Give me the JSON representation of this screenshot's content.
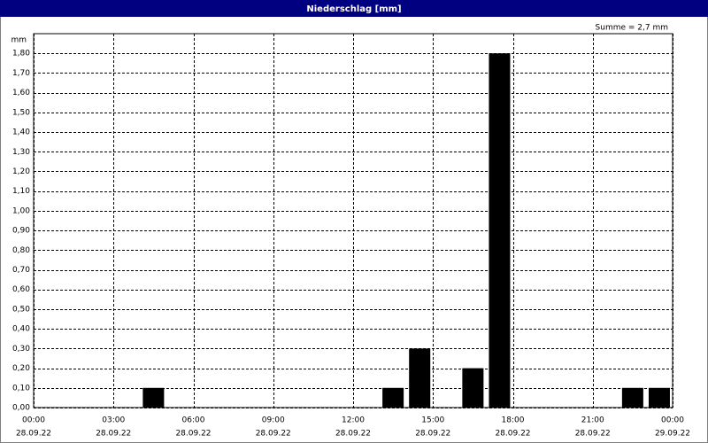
{
  "chart_data": {
    "type": "bar",
    "title": "Niederschlag [mm]",
    "y_label": "mm",
    "annotation": "Summe = 2,7 mm",
    "x": [
      4,
      13,
      14,
      16,
      17,
      22,
      23
    ],
    "values": [
      0.1,
      0.1,
      0.3,
      0.2,
      1.8,
      0.1,
      0.1
    ],
    "color": "#000000",
    "xlim": [
      0,
      24
    ],
    "xticks": [
      {
        "value": 0,
        "label": "00:00"
      },
      {
        "value": 3,
        "label": "03:00"
      },
      {
        "value": 6,
        "label": "06:00"
      },
      {
        "value": 9,
        "label": "09:00"
      },
      {
        "value": 12,
        "label": "12:00"
      },
      {
        "value": 15,
        "label": "15:00"
      },
      {
        "value": 18,
        "label": "18:00"
      },
      {
        "value": 21,
        "label": "21:00"
      },
      {
        "value": 24,
        "label": "00:00"
      }
    ],
    "xtick_dates": [
      "28.09.22",
      "28.09.22",
      "28.09.22",
      "28.09.22",
      "28.09.22",
      "28.09.22",
      "28.09.22",
      "28.09.22",
      "29.09.22"
    ],
    "ylim": [
      0,
      1.9
    ],
    "yticks": [
      {
        "value": 0,
        "label": "0,00"
      },
      {
        "value": 0.1,
        "label": "0,10"
      },
      {
        "value": 0.2,
        "label": "0,20"
      },
      {
        "value": 0.3,
        "label": "0,30"
      },
      {
        "value": 0.4,
        "label": "0,40"
      },
      {
        "value": 0.5,
        "label": "0,50"
      },
      {
        "value": 0.6,
        "label": "0,60"
      },
      {
        "value": 0.7,
        "label": "0,70"
      },
      {
        "value": 0.8,
        "label": "0,80"
      },
      {
        "value": 0.9,
        "label": "0,90"
      },
      {
        "value": 1.0,
        "label": "1,00"
      },
      {
        "value": 1.1,
        "label": "1,10"
      },
      {
        "value": 1.2,
        "label": "1,20"
      },
      {
        "value": 1.3,
        "label": "1,30"
      },
      {
        "value": 1.4,
        "label": "1,40"
      },
      {
        "value": 1.5,
        "label": "1,50"
      },
      {
        "value": 1.6,
        "label": "1,60"
      },
      {
        "value": 1.7,
        "label": "1,70"
      },
      {
        "value": 1.8,
        "label": "1,80"
      }
    ],
    "grid": true
  }
}
